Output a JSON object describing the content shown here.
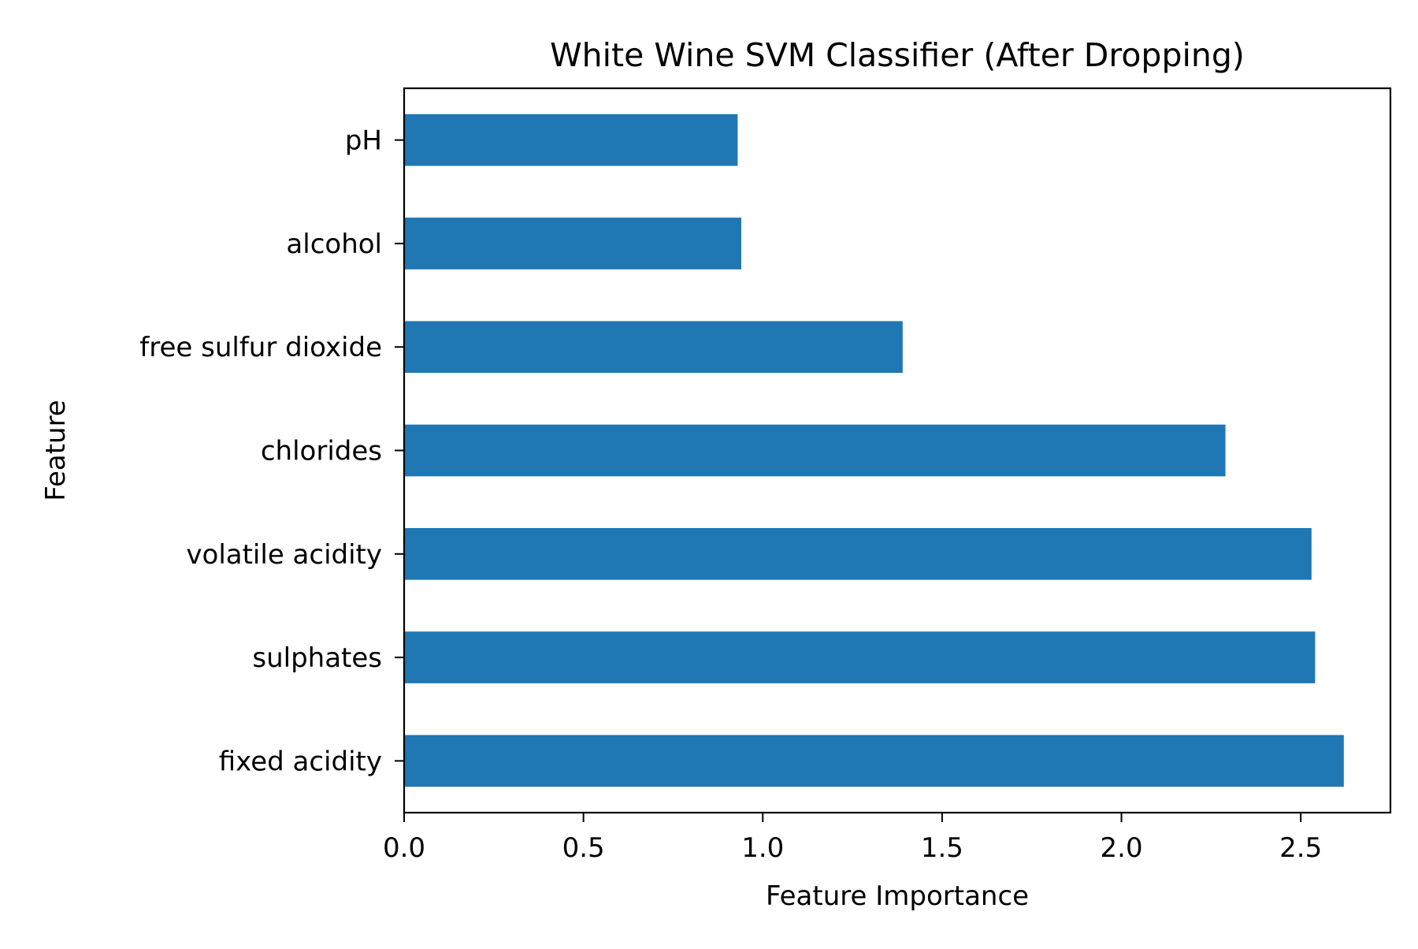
{
  "chart_data": {
    "type": "bar",
    "orientation": "horizontal",
    "title": "White Wine SVM Classifier (After Dropping)",
    "xlabel": "Feature Importance",
    "ylabel": "Feature",
    "categories": [
      "fixed acidity",
      "sulphates",
      "volatile acidity",
      "chlorides",
      "free sulfur dioxide",
      "alcohol",
      "pH"
    ],
    "values": [
      2.62,
      2.54,
      2.53,
      2.29,
      1.39,
      0.94,
      0.93
    ],
    "xlim": [
      0,
      2.75
    ],
    "xticks": [
      0.0,
      0.5,
      1.0,
      1.5,
      2.0,
      2.5
    ],
    "xtick_labels": [
      "0.0",
      "0.5",
      "1.0",
      "1.5",
      "2.0",
      "2.5"
    ],
    "grid": false,
    "bar_color": "#1f77b4"
  }
}
